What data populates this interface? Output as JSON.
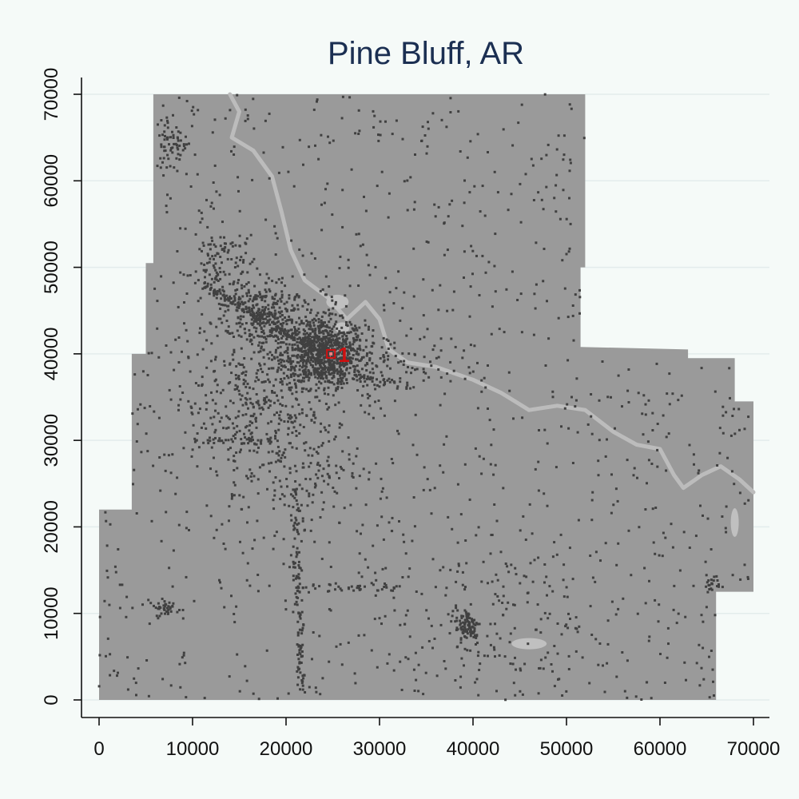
{
  "chart_data": {
    "type": "scatter",
    "title": "Pine Bluff, AR",
    "xlabel": "",
    "ylabel": "",
    "xlim": [
      0,
      70000
    ],
    "ylim": [
      0,
      70000
    ],
    "xticks": [
      "0",
      "10000",
      "20000",
      "30000",
      "40000",
      "50000",
      "60000",
      "70000"
    ],
    "yticks": [
      "0",
      "10000",
      "20000",
      "30000",
      "40000",
      "50000",
      "60000",
      "70000"
    ],
    "grid": "horizontal",
    "colors": {
      "background": "#f5faf8",
      "region": "#9a9a9a",
      "developed": "#404040",
      "water": "#c0c0c0",
      "marker": "#d01010",
      "title": "#1b2f52"
    },
    "region_outline": [
      [
        0,
        0
      ],
      [
        0,
        22000
      ],
      [
        3500,
        22000
      ],
      [
        3500,
        40000
      ],
      [
        5000,
        40000
      ],
      [
        5000,
        50500
      ],
      [
        5800,
        50500
      ],
      [
        5800,
        70000
      ],
      [
        52000,
        70000
      ],
      [
        52000,
        50000
      ],
      [
        51500,
        50000
      ],
      [
        51500,
        40800
      ],
      [
        63000,
        40500
      ],
      [
        63000,
        39500
      ],
      [
        68000,
        39500
      ],
      [
        68000,
        34500
      ],
      [
        70000,
        34500
      ],
      [
        70000,
        12500
      ],
      [
        66000,
        12500
      ],
      [
        66000,
        0
      ]
    ],
    "river_path": [
      [
        14000,
        70000
      ],
      [
        15000,
        68000
      ],
      [
        14200,
        65000
      ],
      [
        16500,
        63500
      ],
      [
        18500,
        60500
      ],
      [
        19500,
        56500
      ],
      [
        20500,
        52000
      ],
      [
        22000,
        48500
      ],
      [
        24500,
        46500
      ],
      [
        26500,
        44000
      ],
      [
        28500,
        46000
      ],
      [
        30000,
        44000
      ],
      [
        31000,
        40500
      ],
      [
        33000,
        39000
      ],
      [
        36000,
        38500
      ],
      [
        40000,
        37000
      ],
      [
        43000,
        35500
      ],
      [
        46000,
        33500
      ],
      [
        49000,
        34000
      ],
      [
        52000,
        33500
      ],
      [
        55000,
        31000
      ],
      [
        57500,
        29500
      ],
      [
        60000,
        29000
      ],
      [
        61500,
        26000
      ],
      [
        62500,
        24500
      ],
      [
        64500,
        26000
      ],
      [
        66500,
        27000
      ],
      [
        68500,
        25500
      ],
      [
        70000,
        24000
      ]
    ],
    "marker": {
      "label": "1",
      "x": 24800,
      "y": 40000
    },
    "developed_clusters": [
      {
        "x": 24000,
        "y": 40000,
        "sx": 2200,
        "sy": 1900,
        "n": 700
      },
      {
        "x": 17000,
        "y": 45000,
        "sx": 1800,
        "sy": 1600,
        "n": 180
      },
      {
        "x": 20500,
        "y": 42500,
        "sx": 3800,
        "sy": 2600,
        "n": 260
      },
      {
        "x": 13000,
        "y": 50000,
        "sx": 1800,
        "sy": 2500,
        "n": 120
      },
      {
        "x": 16000,
        "y": 34000,
        "sx": 4500,
        "sy": 3500,
        "n": 260
      },
      {
        "x": 21000,
        "y": 27000,
        "sx": 3500,
        "sy": 3500,
        "n": 160
      },
      {
        "x": 39500,
        "y": 8500,
        "sx": 700,
        "sy": 1100,
        "n": 90
      },
      {
        "x": 7300,
        "y": 10500,
        "sx": 600,
        "sy": 500,
        "n": 35
      },
      {
        "x": 7800,
        "y": 64500,
        "sx": 900,
        "sy": 1800,
        "n": 60
      },
      {
        "x": 56000,
        "y": 50500,
        "sx": 500,
        "sy": 600,
        "n": 20
      },
      {
        "x": 65500,
        "y": 13500,
        "sx": 500,
        "sy": 500,
        "n": 20
      },
      {
        "x": 26000,
        "y": 39000,
        "sx": 5500,
        "sy": 2000,
        "n": 180
      },
      {
        "x": 42000,
        "y": 9000,
        "sx": 6000,
        "sy": 4000,
        "n": 90
      }
    ],
    "developed_lines": [
      {
        "x1": 21000,
        "y1": 24000,
        "x2": 21600,
        "y2": 1000,
        "n": 120
      },
      {
        "x1": 11000,
        "y1": 48000,
        "x2": 24000,
        "y2": 40000,
        "n": 140
      },
      {
        "x1": 25000,
        "y1": 38000,
        "x2": 34000,
        "y2": 36000,
        "n": 50
      },
      {
        "x1": 22000,
        "y1": 13000,
        "x2": 32000,
        "y2": 13000,
        "n": 40
      },
      {
        "x1": 10000,
        "y1": 30000,
        "x2": 20000,
        "y2": 30000,
        "n": 40
      }
    ],
    "scattered_points": 1300
  }
}
